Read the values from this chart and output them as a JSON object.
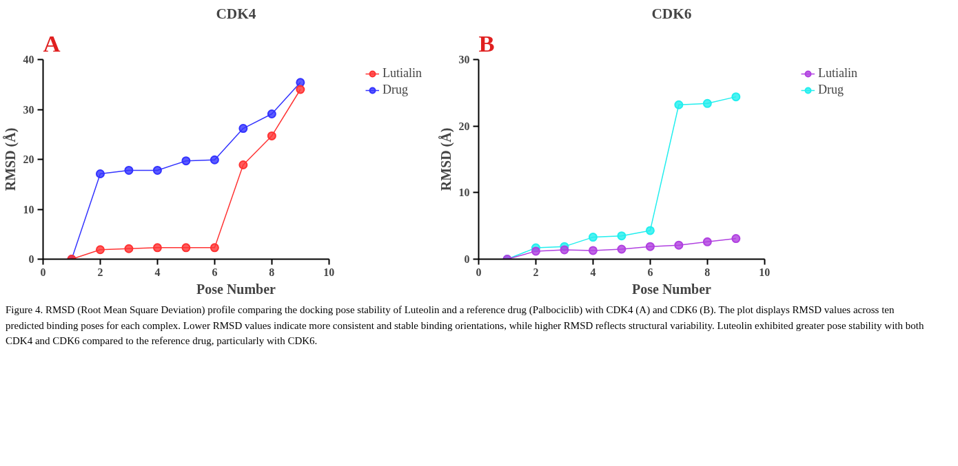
{
  "chart_data": [
    {
      "type": "line",
      "title": "CDK4",
      "xlabel": "Pose Number",
      "ylabel": "RMSD (Å)",
      "annotations": [
        "A"
      ],
      "x": [
        1,
        2,
        3,
        4,
        5,
        6,
        7,
        8,
        9
      ],
      "xlim": [
        0,
        10
      ],
      "xticks": [
        0,
        2,
        4,
        6,
        8,
        10
      ],
      "ylim": [
        0,
        40
      ],
      "yticks": [
        0,
        10,
        20,
        30,
        40
      ],
      "grid": false,
      "legend": "right",
      "marker": "circle",
      "line_style": "solid",
      "series": [
        {
          "name": "Lutialin",
          "color": "#ff3333",
          "values": [
            0,
            1.9,
            2.1,
            2.3,
            2.3,
            2.3,
            18.9,
            24.7,
            34.0
          ]
        },
        {
          "name": "Drug",
          "color": "#3333ff",
          "values": [
            0,
            17.1,
            17.8,
            17.8,
            19.7,
            19.9,
            26.2,
            29.1,
            35.4
          ]
        }
      ]
    },
    {
      "type": "line",
      "title": "CDK6",
      "xlabel": "Pose Number",
      "ylabel": "RMSD (Å)",
      "annotations": [
        "B",
        "Figure 4. RMSD (Root Mean Square Deviation) profile comparing the docking pose stability of Luteolin and a reference drug (Palbociclib) with CDK4 (A) and CDK6 (B). The plot displays RMSD values across ten predicted binding poses for each complex. Lower RMSD values indicate more consistent and stable binding orientations, while higher RMSD reflects structural variability. Luteolin exhibited greater pose stability with both CDK4 and CDK6 compared to the reference drug, particularly with CDK6."
      ],
      "x": [
        1,
        2,
        3,
        4,
        5,
        6,
        7,
        8,
        9
      ],
      "xlim": [
        0,
        10
      ],
      "xticks": [
        0,
        2,
        4,
        6,
        8,
        10
      ],
      "ylim": [
        0,
        30
      ],
      "yticks": [
        0,
        10,
        20,
        30
      ],
      "grid": false,
      "legend": "right",
      "marker": "circle",
      "line_style": "solid",
      "series": [
        {
          "name": "Lutialin",
          "color": "#b040e0",
          "values": [
            0,
            1.2,
            1.4,
            1.3,
            1.5,
            1.9,
            2.1,
            2.6,
            3.1
          ]
        },
        {
          "name": "Drug",
          "color": "#22eeee",
          "values": [
            0,
            1.7,
            1.9,
            3.3,
            3.5,
            4.3,
            23.2,
            23.4,
            24.4
          ]
        }
      ]
    }
  ]
}
